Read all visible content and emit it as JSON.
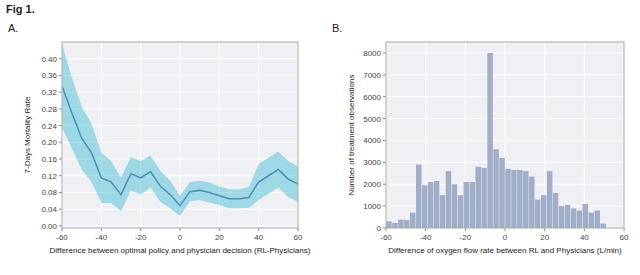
{
  "title": "Fig 1.",
  "chart_data": [
    {
      "type": "line",
      "title": "A.",
      "xlabel": "Difference between optimal policy and physician decision (RL-Physicians)",
      "ylabel": "7-Days Mortality Rate",
      "x": [
        -60,
        -55,
        -50,
        -45,
        -40,
        -35,
        -30,
        -25,
        -20,
        -15,
        -10,
        -5,
        0,
        5,
        10,
        15,
        20,
        25,
        30,
        35,
        40,
        45,
        50,
        55,
        60
      ],
      "values": [
        0.335,
        0.27,
        0.21,
        0.175,
        0.115,
        0.105,
        0.075,
        0.125,
        0.115,
        0.13,
        0.095,
        0.075,
        0.048,
        0.082,
        0.085,
        0.08,
        0.072,
        0.065,
        0.065,
        0.068,
        0.105,
        0.12,
        0.135,
        0.112,
        0.1
      ],
      "band": {
        "upper": [
          0.435,
          0.355,
          0.285,
          0.245,
          0.175,
          0.155,
          0.115,
          0.165,
          0.155,
          0.168,
          0.132,
          0.108,
          0.072,
          0.105,
          0.108,
          0.104,
          0.094,
          0.088,
          0.088,
          0.093,
          0.148,
          0.163,
          0.178,
          0.155,
          0.142
        ],
        "lower": [
          0.235,
          0.185,
          0.135,
          0.105,
          0.055,
          0.055,
          0.035,
          0.085,
          0.075,
          0.092,
          0.058,
          0.042,
          0.024,
          0.059,
          0.062,
          0.056,
          0.05,
          0.042,
          0.042,
          0.043,
          0.062,
          0.077,
          0.092,
          0.069,
          0.058
        ],
        "color": "#5fc4d8"
      },
      "color": "#4a90b8",
      "xlim": [
        -60,
        60
      ],
      "ylim": [
        -0.005,
        0.44
      ],
      "xticks": [
        -60,
        -40,
        -20,
        0,
        20,
        40,
        60
      ],
      "yticks": [
        {
          "value": 0,
          "label": "0.00"
        },
        0.04,
        0.08,
        0.12,
        0.16,
        {
          "value": 0.2,
          "label": "0.20"
        },
        0.24,
        0.28,
        0.32,
        0.36,
        {
          "value": 0.4,
          "label": "0.40"
        }
      ],
      "grid": true
    },
    {
      "type": "histogram",
      "title": "B.",
      "xlabel": "Difference of oxygen flow rate between RL and Physicians (L/min)",
      "ylabel": "Number of treatment observations",
      "bins": [
        -60,
        -57,
        -54,
        -51,
        -48,
        -45,
        -42,
        -39,
        -36,
        -33,
        -30,
        -27,
        -24,
        -21,
        -18,
        -15,
        -12,
        -9,
        -6,
        -3,
        0,
        3,
        6,
        9,
        12,
        15,
        18,
        21,
        24,
        27,
        30,
        33,
        36,
        39,
        42,
        45,
        48,
        51
      ],
      "values": [
        300,
        230,
        380,
        370,
        700,
        2900,
        1950,
        2100,
        2150,
        1500,
        2600,
        2000,
        1500,
        2100,
        2100,
        2800,
        2750,
        8000,
        3600,
        3200,
        2700,
        2650,
        2650,
        2600,
        2350,
        1300,
        1500,
        2600,
        1600,
        1000,
        1050,
        900,
        800,
        1100,
        700,
        800,
        200
      ],
      "color": "#a0aec8",
      "xlim": [
        -60,
        60
      ],
      "ylim": [
        0,
        8500
      ],
      "xticks": [
        -60,
        -40,
        -20,
        0,
        20,
        40,
        60
      ],
      "yticks": [
        0,
        1000,
        2000,
        3000,
        4000,
        5000,
        6000,
        7000,
        8000
      ],
      "grid": true
    }
  ]
}
